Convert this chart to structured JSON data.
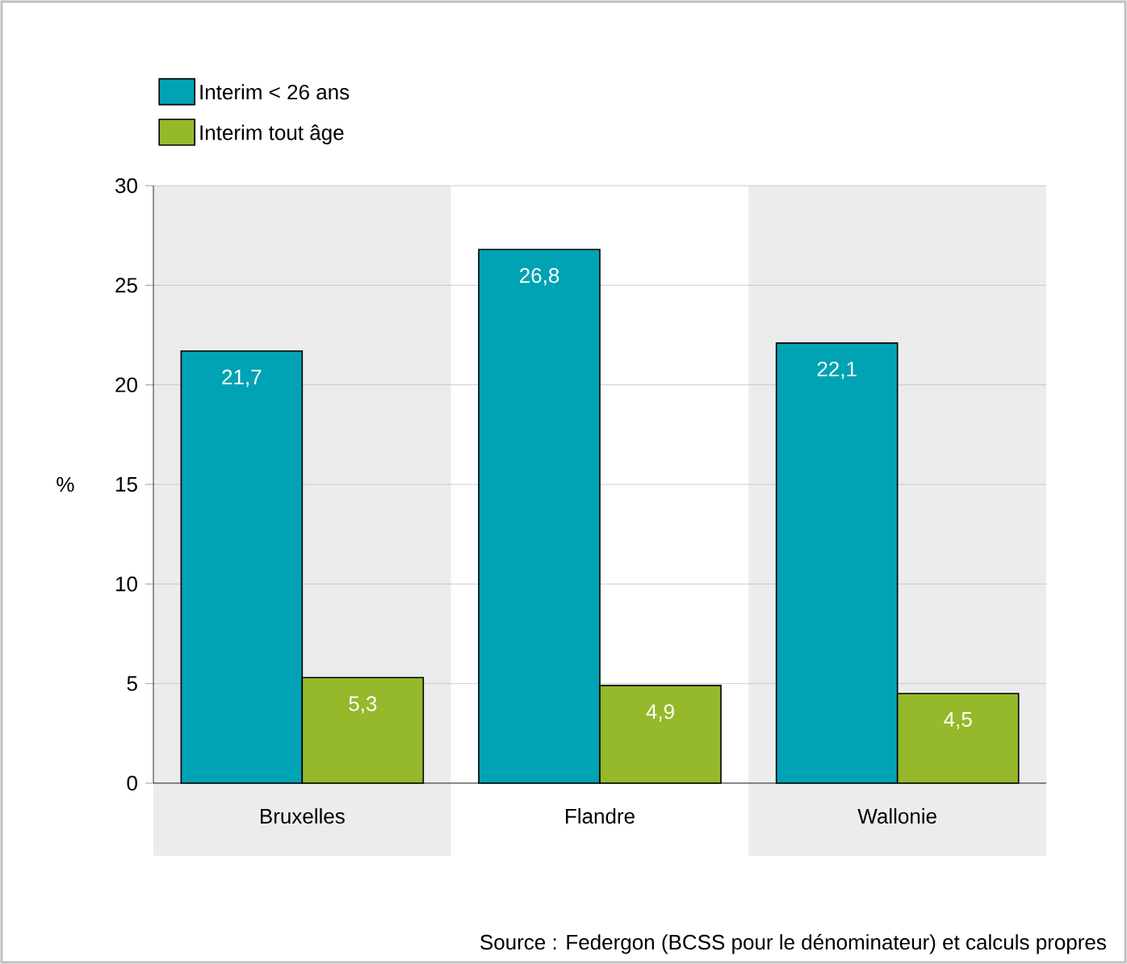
{
  "chart_data": {
    "type": "bar",
    "ylabel": "%",
    "categories": [
      "Bruxelles",
      "Flandre",
      "Wallonie"
    ],
    "series": [
      {
        "name": "Interim < 26 ans",
        "color": "#00a3b4",
        "values": [
          21.7,
          26.8,
          22.1
        ],
        "value_labels": [
          "21,7",
          "26,8",
          "22,1"
        ]
      },
      {
        "name": "Interim tout âge",
        "color": "#95b92b",
        "values": [
          5.3,
          4.9,
          4.5
        ],
        "value_labels": [
          "5,3",
          "4,9",
          "4,5"
        ]
      }
    ],
    "ylim": [
      0,
      30
    ],
    "yticks": [
      0,
      5,
      10,
      15,
      20,
      25,
      30
    ],
    "grid": "y",
    "legend": "top left",
    "annotations": [
      "Source : Federgon (BCSS pour le dénominateur) et calculs propres"
    ]
  }
}
